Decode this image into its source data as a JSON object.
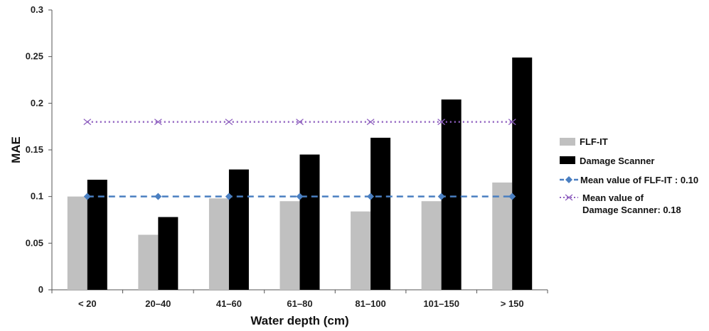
{
  "chart_data": {
    "type": "bar",
    "categories": [
      "< 20",
      "20–40",
      "41–60",
      "61–80",
      "81–100",
      "101–150",
      "> 150"
    ],
    "series": [
      {
        "name": "FLF-IT",
        "color": "#c0c0c0",
        "values": [
          0.1,
          0.059,
          0.098,
          0.095,
          0.084,
          0.095,
          0.115
        ]
      },
      {
        "name": "Damage Scanner",
        "color": "#000000",
        "values": [
          0.118,
          0.078,
          0.129,
          0.145,
          0.163,
          0.204,
          0.249
        ]
      }
    ],
    "reference_lines": [
      {
        "name": "Mean value of FLF-IT : 0.10",
        "value": 0.1,
        "color": "#4a7fc1",
        "style": "dashed",
        "marker": "diamond"
      },
      {
        "name_lines": [
          "Mean value of",
          "Damage Scanner: 0.18"
        ],
        "value": 0.18,
        "color": "#8e5fbf",
        "style": "dotted",
        "marker": "x"
      }
    ],
    "xlabel": "Water depth (cm)",
    "ylabel": "MAE",
    "ylim": [
      0,
      0.3
    ],
    "yticks": [
      "0",
      "0.05",
      "0.1",
      "0.15",
      "0.2",
      "0.25",
      "0.3"
    ],
    "ytick_values": [
      0,
      0.05,
      0.1,
      0.15,
      0.2,
      0.25,
      0.3
    ],
    "grid": false,
    "legend_position": "right"
  }
}
